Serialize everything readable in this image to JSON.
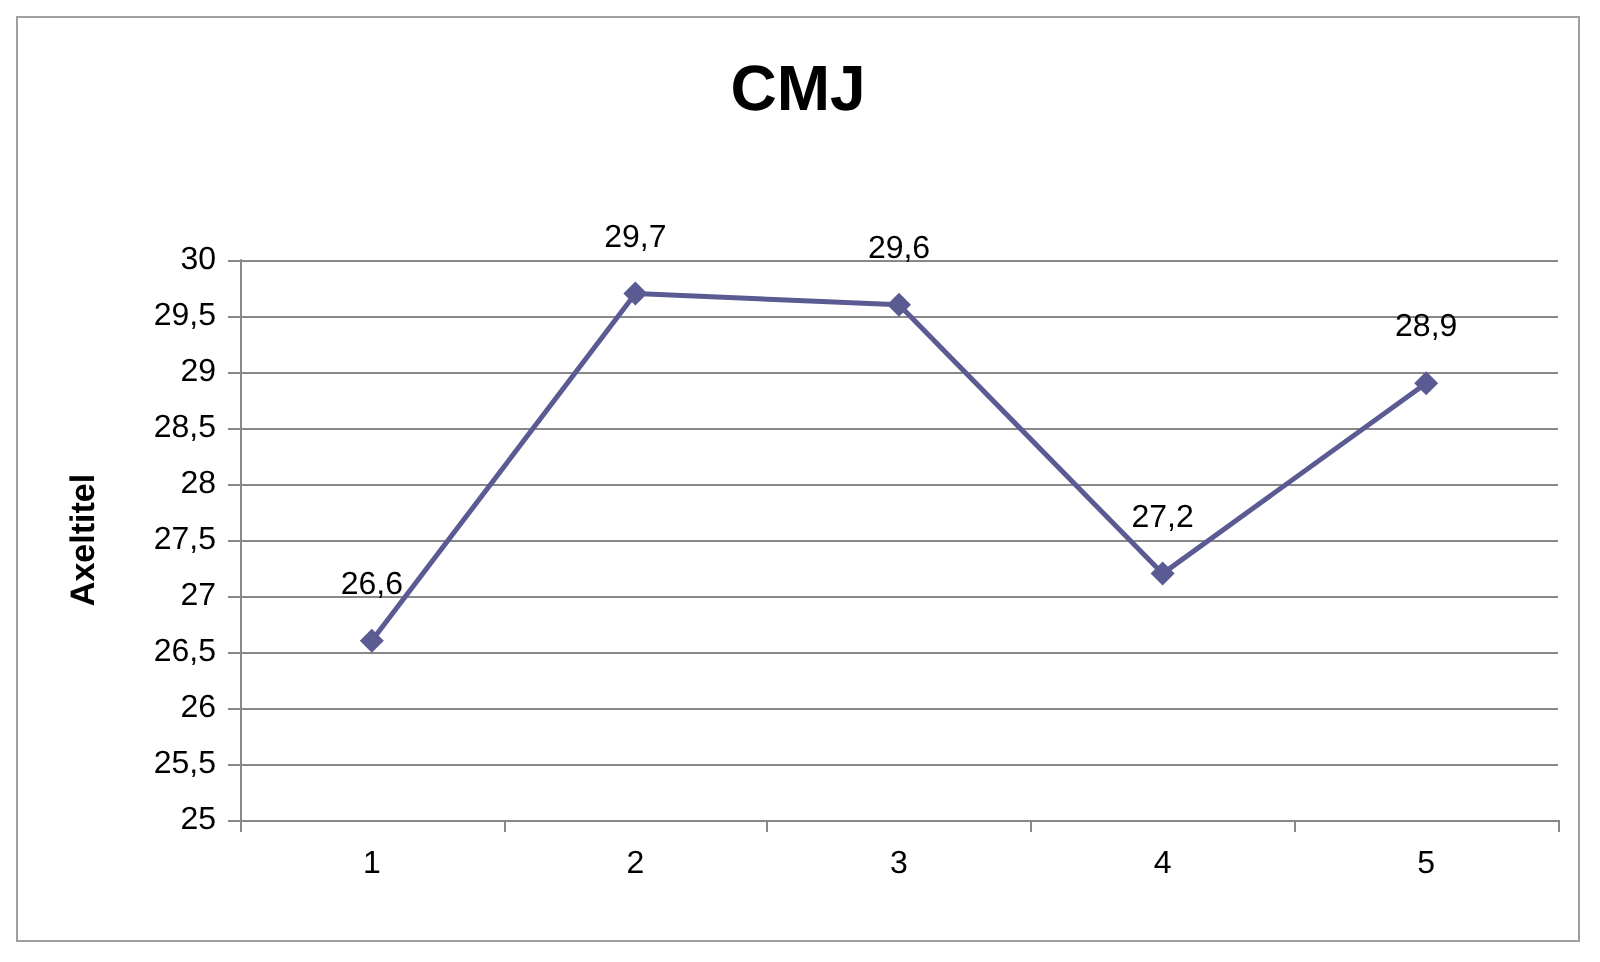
{
  "chart_data": {
    "type": "line",
    "title": "CMJ",
    "ylabel": "Axeltitel",
    "categories": [
      "1",
      "2",
      "3",
      "4",
      "5"
    ],
    "series": [
      {
        "color": "#5b5b94",
        "values": [
          26.6,
          29.7,
          29.6,
          27.2,
          28.9
        ],
        "value_labels": [
          "26,6",
          "29,7",
          "29,6",
          "27,2",
          "28,9"
        ]
      }
    ],
    "ylim": [
      25,
      30
    ],
    "yticks": [
      25,
      {
        "value": 25.5,
        "label": "25,5"
      },
      26,
      {
        "value": 26.5,
        "label": "26,5"
      },
      27,
      {
        "value": 27.5,
        "label": "27,5"
      },
      28,
      {
        "value": 28.5,
        "label": "28,5"
      },
      29,
      {
        "value": 29.5,
        "label": "29,5"
      },
      30
    ],
    "grid": "y",
    "legend": false,
    "marker": "diamond",
    "line_style": "solid"
  }
}
